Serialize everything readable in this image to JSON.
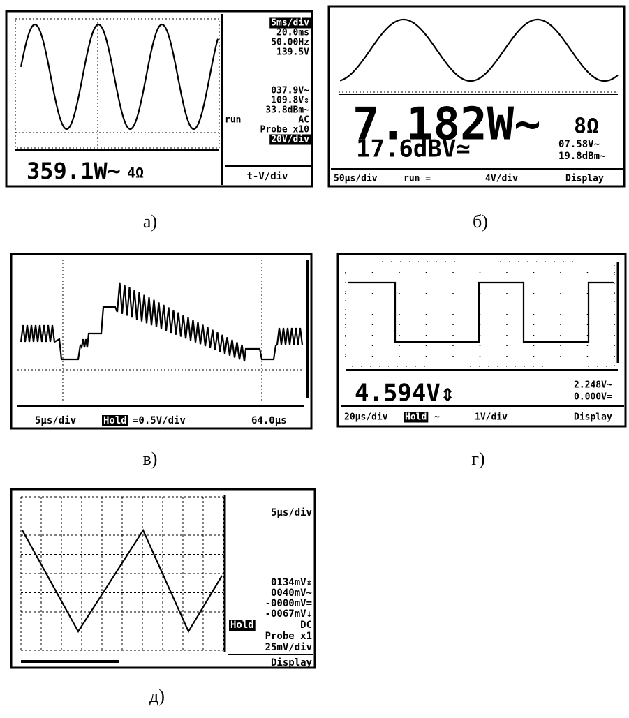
{
  "panels": [
    {
      "caption": "а)",
      "texts": [
        "5ms/div",
        "20.0ms",
        "50.00Hz",
        "139.5V",
        "037.9V~",
        "109.8V⇕",
        "33.8dBm~",
        "run",
        "AC",
        "Probe x10",
        "20V/div",
        "t-V/div",
        "359.1W~",
        "4Ω"
      ]
    },
    {
      "caption": "б)",
      "texts": [
        "7.182W~",
        "8Ω",
        "17.6dBV≃",
        "07.58V~",
        "19.8dBm~",
        "50µs/div",
        "run =",
        "4V/div",
        "Display"
      ]
    },
    {
      "caption": "в)",
      "texts": [
        "5µs/div",
        "Hold",
        "=0.5V/div",
        "64.0µs"
      ]
    },
    {
      "caption": "г)",
      "texts": [
        "4.594V⇕",
        "2.248V~",
        "0.000V=",
        "20µs/div",
        "Hold",
        "~",
        "1V/div",
        "Display"
      ]
    },
    {
      "caption": "д)",
      "texts": [
        "5µs/div",
        "0134mV⇕",
        "0040mV~",
        "-0000mV=",
        "-0067mV↓",
        "Hold",
        "DC",
        "Probe x1",
        "25mV/div",
        "Display"
      ]
    }
  ]
}
